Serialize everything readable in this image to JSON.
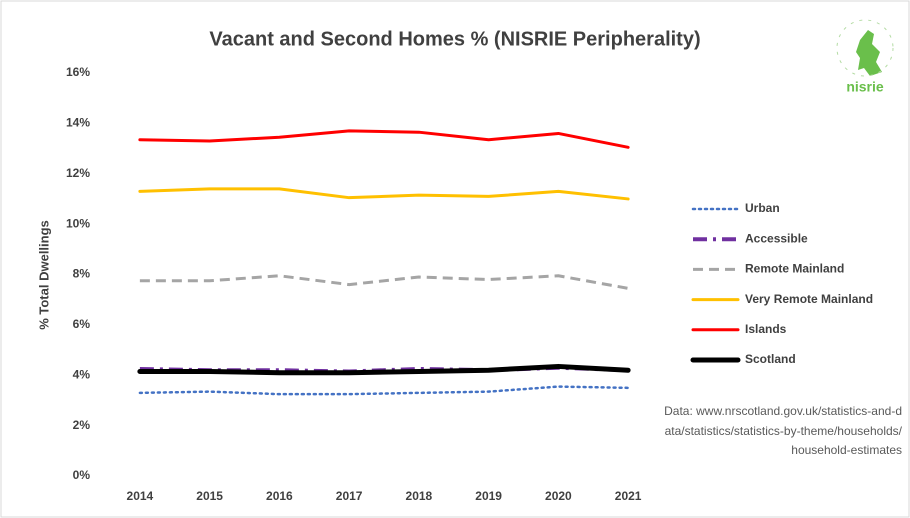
{
  "chart_data": {
    "type": "line",
    "title": "Vacant and Second Homes % (NISRIE Peripherality)",
    "y_label": "% Total Dwellings",
    "logo_text": "nisrie",
    "source": "Data: www.nrscotland.gov.uk/statistics-and-data/statistics/statistics-by-theme/households/household-estimates",
    "categories": [
      "2014",
      "2015",
      "2016",
      "2017",
      "2018",
      "2019",
      "2020",
      "2021"
    ],
    "ylim": [
      0,
      16
    ],
    "yticks": [
      {
        "value": 0,
        "label": "0%"
      },
      {
        "value": 2,
        "label": "2%"
      },
      {
        "value": 4,
        "label": "4%"
      },
      {
        "value": 6,
        "label": "6%"
      },
      {
        "value": 8,
        "label": "8%"
      },
      {
        "value": 10,
        "label": "10%"
      },
      {
        "value": 12,
        "label": "12%"
      },
      {
        "value": 14,
        "label": "14%"
      },
      {
        "value": 16,
        "label": "16%"
      }
    ],
    "grid": false,
    "legend": "right",
    "series": [
      {
        "name": "Urban",
        "color": "#4472c4",
        "dash": "dotted",
        "values": [
          3.3,
          3.35,
          3.25,
          3.25,
          3.3,
          3.35,
          3.55,
          3.5
        ]
      },
      {
        "name": "Accessible",
        "color": "#7030a0",
        "dash": "dashdot",
        "values": [
          4.25,
          4.2,
          4.2,
          4.15,
          4.25,
          4.2,
          4.3,
          4.2
        ]
      },
      {
        "name": "Remote Mainland",
        "color": "#a5a5a5",
        "dash": "dashed",
        "values": [
          7.75,
          7.75,
          7.95,
          7.6,
          7.9,
          7.8,
          7.95,
          7.45
        ]
      },
      {
        "name": "Very Remote Mainland",
        "color": "#ffc000",
        "dash": "solid",
        "values": [
          11.3,
          11.4,
          11.4,
          11.05,
          11.15,
          11.1,
          11.3,
          11.0
        ]
      },
      {
        "name": "Islands",
        "color": "#ff0000",
        "dash": "solid",
        "values": [
          13.35,
          13.3,
          13.45,
          13.7,
          13.65,
          13.35,
          13.6,
          13.05
        ]
      },
      {
        "name": "Scotland",
        "color": "#000000",
        "dash": "thick",
        "values": [
          4.15,
          4.15,
          4.1,
          4.1,
          4.15,
          4.2,
          4.35,
          4.2
        ]
      }
    ]
  }
}
